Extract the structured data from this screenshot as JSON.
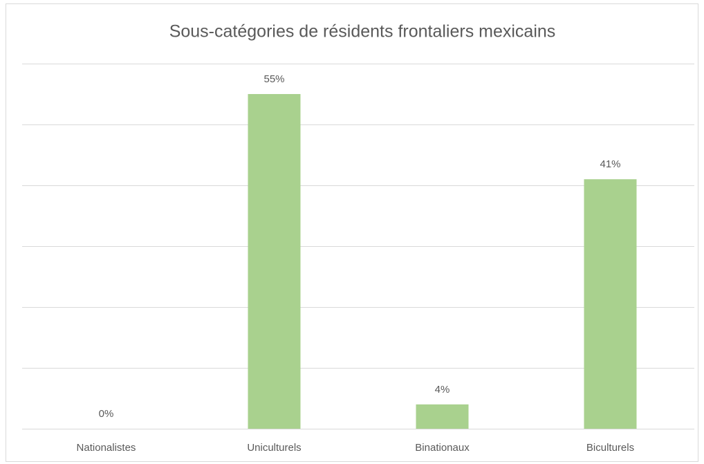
{
  "chart_data": {
    "type": "bar",
    "title": "Sous-catégories de résidents frontaliers mexicains",
    "categories": [
      "Nationalistes",
      "Uniculturels",
      "Binationaux",
      "Biculturels"
    ],
    "values": [
      0,
      55,
      4,
      41
    ],
    "value_labels": [
      "0%",
      "55%",
      "4%",
      "41%"
    ],
    "color": "#a9d18e",
    "ylim": [
      0,
      60
    ],
    "yticks": [
      0,
      10,
      20,
      30,
      40,
      50,
      60
    ],
    "grid": true
  }
}
